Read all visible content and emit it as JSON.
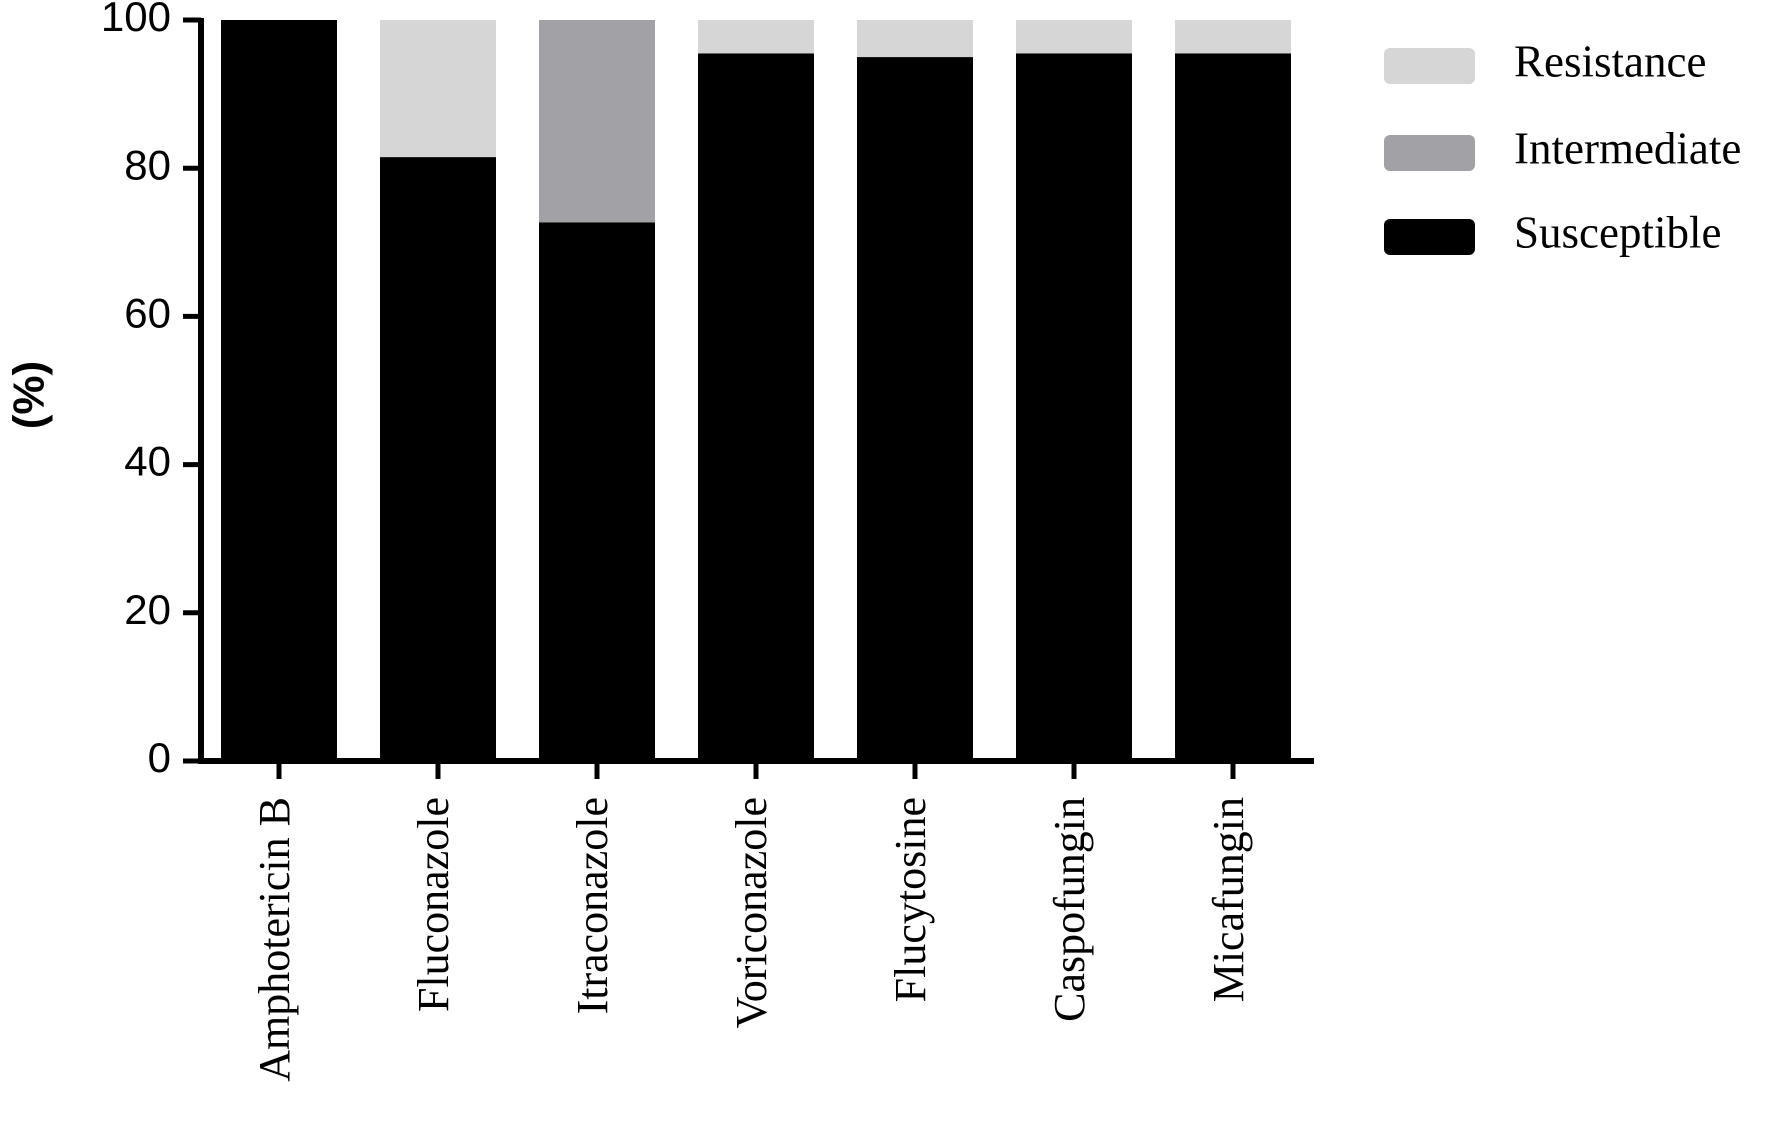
{
  "chart_data": {
    "type": "stacked_bar",
    "y_label": "(%)",
    "categories": [
      "Amphotericin B",
      "Fluconazole",
      "Itraconazole",
      "Voriconazole",
      "Flucytosine",
      "Caspofungin",
      "Micafungin"
    ],
    "series": [
      {
        "name": "Susceptible",
        "color": "#000000",
        "values": [
          100,
          81.5,
          72.7,
          95.5,
          95,
          95.5,
          95.5
        ]
      },
      {
        "name": "Intermediate",
        "color": "#a2a1a6",
        "values": [
          0,
          0,
          27.3,
          0,
          0,
          0,
          0
        ]
      },
      {
        "name": "Resistance",
        "color": "#d6d6d6",
        "values": [
          0,
          18.5,
          0,
          4.5,
          5,
          4.5,
          4.5
        ]
      }
    ],
    "ylim": [
      0,
      100
    ],
    "yticks": [
      0,
      20,
      40,
      60,
      80,
      100
    ]
  }
}
